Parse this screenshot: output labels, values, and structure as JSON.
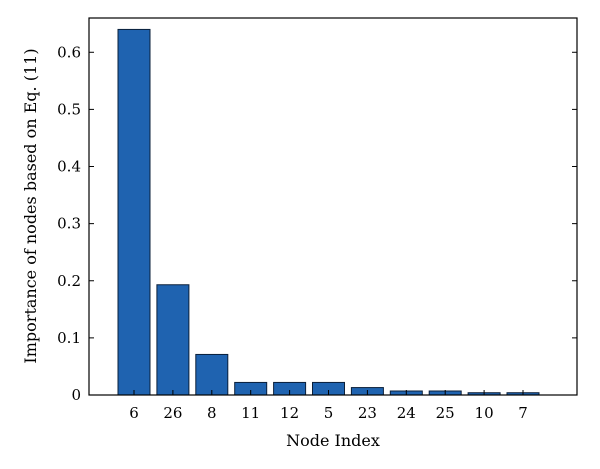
{
  "chart_data": {
    "type": "bar",
    "title": "",
    "xlabel": "Node Index",
    "ylabel": "Importance of nodes based on Eq. (11)",
    "categories": [
      "6",
      "26",
      "8",
      "11",
      "12",
      "5",
      "23",
      "24",
      "25",
      "10",
      "7"
    ],
    "values": [
      0.64,
      0.193,
      0.071,
      0.022,
      0.022,
      0.022,
      0.013,
      0.007,
      0.007,
      0.004,
      0.004
    ],
    "ylim": [
      0,
      0.66
    ],
    "yticks": [
      0,
      0.1,
      0.2,
      0.3,
      0.4,
      0.5,
      0.6
    ],
    "ytick_labels": [
      "0",
      "0.1",
      "0.2",
      "0.3",
      "0.4",
      "0.5",
      "0.6"
    ],
    "grid": false,
    "legend": "none",
    "bar_color": "#1f63b0",
    "bar_edge_color": "#0a1f3a"
  }
}
